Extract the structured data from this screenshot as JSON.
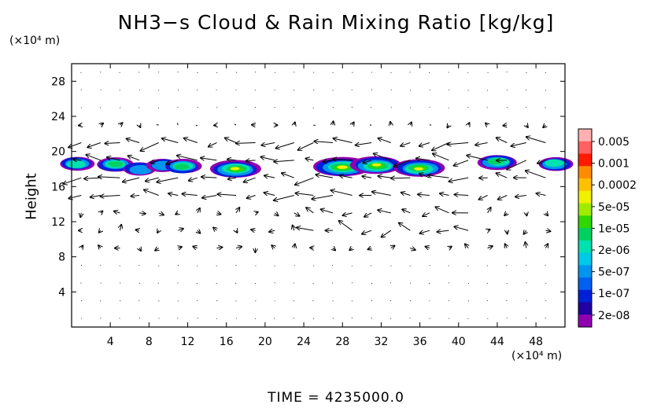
{
  "title": "NH3−s Cloud & Rain Mixing Ratio [kg/kg]",
  "y_unit": "(×10⁴ m)",
  "x_unit": "(×10⁴ m)",
  "time_label": "TIME = 4235000.0",
  "chart_data": {
    "type": "heatmap",
    "title": "NH3−s Cloud & Rain Mixing Ratio [kg/kg]",
    "ylabel": "Height",
    "xlabel": "",
    "x_unit": "×10⁴ m",
    "y_unit": "×10⁴ m",
    "xlim": [
      0,
      51
    ],
    "ylim": [
      0,
      30
    ],
    "x_ticks": [
      4,
      8,
      12,
      16,
      20,
      24,
      28,
      32,
      36,
      40,
      44,
      48
    ],
    "y_ticks": [
      4,
      8,
      12,
      16,
      20,
      24,
      28
    ],
    "colorbar": {
      "labels": [
        "0.005",
        "0.001",
        "0.0002",
        "5e-05",
        "1e-05",
        "2e-06",
        "5e-07",
        "1e-07",
        "2e-08"
      ],
      "colors": [
        "#ffb0b0",
        "#ff6060",
        "#ff1a00",
        "#ff8c00",
        "#ffc000",
        "#f0f000",
        "#a0ec00",
        "#30d800",
        "#00d060",
        "#00e0b0",
        "#00c8e8",
        "#0096f0",
        "#0060f0",
        "#0020d8",
        "#2000a0",
        "#9000b0"
      ]
    },
    "cloud_cells": [
      {
        "x": 0.6,
        "y": 18.6,
        "level": 0.4
      },
      {
        "x": 4.5,
        "y": 18.5,
        "level": 0.45
      },
      {
        "x": 7.0,
        "y": 18.0,
        "level": 0.35
      },
      {
        "x": 9.5,
        "y": 18.4,
        "level": 0.35
      },
      {
        "x": 11.5,
        "y": 18.3,
        "level": 0.45
      },
      {
        "x": 17.0,
        "y": 18.0,
        "level": 0.75
      },
      {
        "x": 28.0,
        "y": 18.2,
        "level": 0.9
      },
      {
        "x": 31.5,
        "y": 18.4,
        "level": 0.75
      },
      {
        "x": 36.0,
        "y": 18.1,
        "level": 0.75
      },
      {
        "x": 44.0,
        "y": 18.8,
        "level": 0.5
      },
      {
        "x": 50.0,
        "y": 18.6,
        "level": 0.4
      }
    ]
  }
}
